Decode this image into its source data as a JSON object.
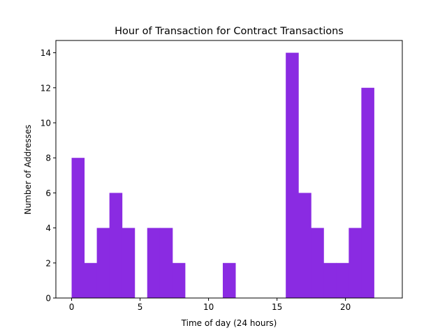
{
  "chart_data": {
    "type": "bar",
    "title": "Hour of Transaction for Contract Transactions",
    "xlabel": "Time of day (24 hours)",
    "ylabel": "Number of Addresses",
    "color": "#8a2be2",
    "xlim": [
      -1.15,
      24.15
    ],
    "ylim": [
      0,
      14.7
    ],
    "x_ticks": [
      0,
      5,
      10,
      15,
      20
    ],
    "y_ticks": [
      0,
      2,
      4,
      6,
      8,
      10,
      12,
      14
    ],
    "bin_edges": [
      0,
      0.92,
      1.84,
      2.76,
      3.68,
      4.6,
      5.52,
      6.44,
      7.36,
      8.28,
      9.2,
      10.12,
      11.04,
      11.96,
      12.88,
      13.8,
      14.72,
      15.64,
      16.56,
      17.48,
      18.4,
      19.32,
      20.24,
      21.16,
      22.08,
      23
    ],
    "counts": [
      8,
      2,
      4,
      6,
      4,
      0,
      4,
      4,
      2,
      0,
      0,
      0,
      2,
      0,
      0,
      0,
      0,
      14,
      6,
      4,
      2,
      2,
      4,
      12,
      0
    ],
    "grid": false,
    "legend": "none"
  }
}
